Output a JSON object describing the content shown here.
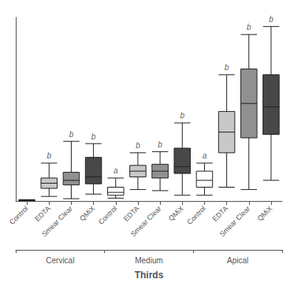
{
  "chart_data": {
    "type": "boxplot",
    "xlabel": "Thirds",
    "ylim": [
      0,
      16
    ],
    "tick_labels": "x",
    "grid": false,
    "groups": [
      {
        "name": "Cervical",
        "categories": [
          "Control",
          "EDTA",
          "Smear Clear",
          "QMiX"
        ],
        "values": [
          [
            0.02,
            0.03,
            0.06,
            0.09,
            0.12
          ],
          [
            0.4,
            1.1,
            1.55,
            2.0,
            3.3
          ],
          [
            0.2,
            1.4,
            1.8,
            2.5,
            5.2
          ],
          [
            0.6,
            1.5,
            2.1,
            3.8,
            5.0
          ]
        ],
        "colors": [
          "#ffffff",
          "#c8c8c8",
          "#909090",
          "#484848"
        ],
        "letters": [
          null,
          "b",
          "b",
          "b"
        ]
      },
      {
        "name": "Medium",
        "categories": [
          "Control",
          "EDTA",
          "Smear Clear",
          "QMiX"
        ],
        "values": [
          [
            0.25,
            0.5,
            0.75,
            1.2,
            2.0
          ],
          [
            1.0,
            2.1,
            2.6,
            3.1,
            4.2
          ],
          [
            0.9,
            2.0,
            2.6,
            3.2,
            4.3
          ],
          [
            0.5,
            2.4,
            3.0,
            4.6,
            6.8
          ]
        ],
        "colors": [
          "#ffffff",
          "#c8c8c8",
          "#909090",
          "#484848"
        ],
        "letters": [
          "a",
          "b",
          "b",
          "b"
        ]
      },
      {
        "name": "Apical",
        "categories": [
          "Control",
          "EDTA",
          "Smear Clear",
          "QMiX"
        ],
        "values": [
          [
            0.5,
            1.2,
            1.8,
            2.6,
            3.3
          ],
          [
            1.2,
            4.2,
            6.0,
            7.8,
            11.0
          ],
          [
            1.0,
            5.5,
            8.5,
            11.5,
            14.5
          ],
          [
            1.8,
            5.8,
            8.2,
            11.0,
            15.2
          ]
        ],
        "colors": [
          "#ffffff",
          "#c8c8c8",
          "#909090",
          "#484848"
        ],
        "letters": [
          "a",
          "b",
          "b",
          "b"
        ]
      }
    ]
  }
}
